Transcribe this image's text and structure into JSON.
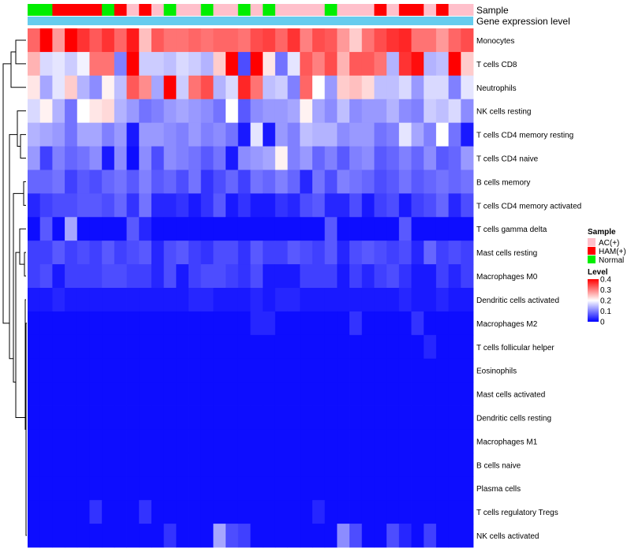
{
  "chart_data": {
    "type": "heatmap",
    "title": "",
    "annotation_tracks": [
      "Sample",
      "Gene expression level"
    ],
    "sample_column_groups": [
      "Normal",
      "Normal",
      "HAM(+)",
      "HAM(+)",
      "HAM(+)",
      "HAM(+)",
      "Normal",
      "HAM(+)",
      "AC(+)",
      "HAM(+)",
      "AC(+)",
      "Normal",
      "AC(+)",
      "AC(+)",
      "Normal",
      "AC(+)",
      "AC(+)",
      "Normal",
      "AC(+)",
      "Normal",
      "AC(+)",
      "AC(+)",
      "AC(+)",
      "AC(+)",
      "Normal",
      "AC(+)",
      "AC(+)",
      "AC(+)",
      "HAM(+)",
      "AC(+)",
      "HAM(+)",
      "HAM(+)",
      "AC(+)",
      "HAM(+)",
      "AC(+)",
      "AC(+)"
    ],
    "rows": [
      "Monocytes",
      "T cells CD8",
      "Neutrophils",
      "NK cells resting",
      "T cells CD4 memory resting",
      "T cells CD4 naive",
      "B cells memory",
      "T cells CD4 memory activated",
      "T cells gamma delta",
      "Mast cells resting",
      "Macrophages M0",
      "Dendritic cells activated",
      "Macrophages M2",
      "T cells follicular helper",
      "Eosinophils",
      "Mast cells activated",
      "Dendritic cells resting",
      "Macrophages M1",
      "B cells naive",
      "Plasma cells",
      "T cells regulatory  Tregs",
      "NK cells activated"
    ],
    "values": [
      [
        0.32,
        0.4,
        0.28,
        0.4,
        0.36,
        0.33,
        0.36,
        0.32,
        0.38,
        0.25,
        0.33,
        0.31,
        0.31,
        0.32,
        0.31,
        0.32,
        0.32,
        0.31,
        0.34,
        0.35,
        0.32,
        0.36,
        0.3,
        0.34,
        0.33,
        0.28,
        0.24,
        0.31,
        0.34,
        0.36,
        0.37,
        0.31,
        0.31,
        0.28,
        0.32,
        0.34
      ],
      [
        0.26,
        0.17,
        0.18,
        0.16,
        0.19,
        0.31,
        0.31,
        0.1,
        0.42,
        0.16,
        0.16,
        0.15,
        0.17,
        0.16,
        0.14,
        0.24,
        0.41,
        0.06,
        0.4,
        0.22,
        0.09,
        0.18,
        0.33,
        0.3,
        0.34,
        0.26,
        0.33,
        0.33,
        0.31,
        0.14,
        0.36,
        0.39,
        0.14,
        0.15,
        0.41,
        0.24
      ],
      [
        0.22,
        0.13,
        0.18,
        0.24,
        0.14,
        0.11,
        0.21,
        0.15,
        0.33,
        0.29,
        0.13,
        0.4,
        0.16,
        0.31,
        0.34,
        0.14,
        0.17,
        0.37,
        0.31,
        0.15,
        0.16,
        0.1,
        0.32,
        0.2,
        0.12,
        0.24,
        0.25,
        0.23,
        0.15,
        0.15,
        0.17,
        0.12,
        0.17,
        0.17,
        0.1,
        0.18
      ],
      [
        0.17,
        0.21,
        0.14,
        0.09,
        0.2,
        0.22,
        0.23,
        0.14,
        0.12,
        0.09,
        0.1,
        0.12,
        0.13,
        0.12,
        0.11,
        0.09,
        0.2,
        0.07,
        0.11,
        0.12,
        0.12,
        0.13,
        0.21,
        0.13,
        0.11,
        0.15,
        0.11,
        0.12,
        0.12,
        0.14,
        0.11,
        0.1,
        0.16,
        0.15,
        0.17,
        0.11
      ],
      [
        0.14,
        0.13,
        0.12,
        0.09,
        0.13,
        0.13,
        0.1,
        0.12,
        0.02,
        0.12,
        0.12,
        0.11,
        0.1,
        0.12,
        0.1,
        0.11,
        0.09,
        0.02,
        0.18,
        0.02,
        0.12,
        0.1,
        0.15,
        0.14,
        0.14,
        0.11,
        0.12,
        0.12,
        0.09,
        0.1,
        0.18,
        0.13,
        0.1,
        0.2,
        0.09,
        0.02
      ],
      [
        0.12,
        0.05,
        0.1,
        0.08,
        0.09,
        0.11,
        0.02,
        0.11,
        0.01,
        0.11,
        0.06,
        0.11,
        0.1,
        0.09,
        0.07,
        0.09,
        0.02,
        0.11,
        0.12,
        0.13,
        0.21,
        0.1,
        0.12,
        0.08,
        0.1,
        0.07,
        0.1,
        0.11,
        0.07,
        0.08,
        0.1,
        0.08,
        0.11,
        0.07,
        0.08,
        0.12
      ],
      [
        0.08,
        0.08,
        0.09,
        0.05,
        0.07,
        0.06,
        0.08,
        0.09,
        0.07,
        0.1,
        0.07,
        0.08,
        0.06,
        0.09,
        0.04,
        0.06,
        0.08,
        0.05,
        0.09,
        0.08,
        0.1,
        0.08,
        0.03,
        0.09,
        0.06,
        0.1,
        0.09,
        0.08,
        0.06,
        0.07,
        0.09,
        0.07,
        0.08,
        0.09,
        0.08,
        0.09
      ],
      [
        0.03,
        0.05,
        0.06,
        0.06,
        0.07,
        0.07,
        0.06,
        0.08,
        0.04,
        0.09,
        0.03,
        0.03,
        0.04,
        0.02,
        0.04,
        0.07,
        0.02,
        0.04,
        0.02,
        0.02,
        0.04,
        0.03,
        0.06,
        0.07,
        0.03,
        0.03,
        0.06,
        0.02,
        0.05,
        0.06,
        0.02,
        0.05,
        0.06,
        0.08,
        0.03,
        0.06
      ],
      [
        0.01,
        0.07,
        0.01,
        0.13,
        0.01,
        0.01,
        0.01,
        0.01,
        0.07,
        0.03,
        0.01,
        0.01,
        0.01,
        0.01,
        0.01,
        0.01,
        0.01,
        0.01,
        0.01,
        0.01,
        0.01,
        0.01,
        0.01,
        0.01,
        0.07,
        0.01,
        0.01,
        0.01,
        0.01,
        0.01,
        0.07,
        0.01,
        0.01,
        0.01,
        0.01,
        0.01
      ],
      [
        0.05,
        0.05,
        0.07,
        0.05,
        0.06,
        0.05,
        0.07,
        0.05,
        0.06,
        0.07,
        0.03,
        0.06,
        0.07,
        0.05,
        0.04,
        0.06,
        0.06,
        0.04,
        0.07,
        0.05,
        0.05,
        0.07,
        0.06,
        0.05,
        0.07,
        0.03,
        0.06,
        0.07,
        0.06,
        0.05,
        0.06,
        0.03,
        0.08,
        0.05,
        0.06,
        0.05
      ],
      [
        0.05,
        0.06,
        0.02,
        0.05,
        0.05,
        0.05,
        0.06,
        0.06,
        0.05,
        0.05,
        0.03,
        0.06,
        0.02,
        0.05,
        0.06,
        0.06,
        0.05,
        0.04,
        0.06,
        0.02,
        0.02,
        0.02,
        0.05,
        0.05,
        0.05,
        0.02,
        0.05,
        0.03,
        0.05,
        0.06,
        0.04,
        0.02,
        0.02,
        0.05,
        0.03,
        0.05
      ],
      [
        0.02,
        0.02,
        0.03,
        0.02,
        0.02,
        0.02,
        0.02,
        0.02,
        0.02,
        0.02,
        0.02,
        0.02,
        0.02,
        0.03,
        0.03,
        0.02,
        0.02,
        0.02,
        0.03,
        0.02,
        0.03,
        0.03,
        0.02,
        0.02,
        0.02,
        0.02,
        0.02,
        0.02,
        0.02,
        0.02,
        0.03,
        0.02,
        0.02,
        0.03,
        0.02,
        0.02
      ],
      [
        0.01,
        0.01,
        0.01,
        0.01,
        0.01,
        0.01,
        0.01,
        0.01,
        0.01,
        0.01,
        0.01,
        0.01,
        0.01,
        0.01,
        0.01,
        0.01,
        0.01,
        0.01,
        0.03,
        0.03,
        0.01,
        0.01,
        0.01,
        0.01,
        0.01,
        0.01,
        0.04,
        0.01,
        0.01,
        0.01,
        0.01,
        0.04,
        0.01,
        0.01,
        0.01,
        0.01
      ],
      [
        0.01,
        0.01,
        0.01,
        0.01,
        0.01,
        0.01,
        0.01,
        0.01,
        0.01,
        0.01,
        0.01,
        0.01,
        0.01,
        0.01,
        0.01,
        0.01,
        0.01,
        0.01,
        0.01,
        0.01,
        0.01,
        0.01,
        0.01,
        0.01,
        0.01,
        0.01,
        0.01,
        0.01,
        0.01,
        0.01,
        0.01,
        0.01,
        0.03,
        0.01,
        0.01,
        0.01
      ],
      [
        0.01,
        0.01,
        0.01,
        0.01,
        0.01,
        0.01,
        0.01,
        0.01,
        0.01,
        0.01,
        0.01,
        0.01,
        0.01,
        0.01,
        0.01,
        0.01,
        0.01,
        0.01,
        0.01,
        0.01,
        0.01,
        0.01,
        0.01,
        0.01,
        0.01,
        0.01,
        0.01,
        0.01,
        0.01,
        0.01,
        0.01,
        0.01,
        0.01,
        0.01,
        0.01,
        0.01
      ],
      [
        0.01,
        0.01,
        0.01,
        0.01,
        0.01,
        0.01,
        0.01,
        0.01,
        0.01,
        0.01,
        0.01,
        0.01,
        0.01,
        0.01,
        0.01,
        0.01,
        0.01,
        0.01,
        0.01,
        0.01,
        0.01,
        0.01,
        0.01,
        0.01,
        0.01,
        0.01,
        0.01,
        0.01,
        0.01,
        0.01,
        0.01,
        0.01,
        0.01,
        0.01,
        0.01,
        0.01
      ],
      [
        0.01,
        0.01,
        0.01,
        0.01,
        0.01,
        0.01,
        0.01,
        0.01,
        0.01,
        0.01,
        0.01,
        0.01,
        0.01,
        0.01,
        0.01,
        0.01,
        0.01,
        0.01,
        0.01,
        0.01,
        0.01,
        0.01,
        0.01,
        0.01,
        0.01,
        0.01,
        0.01,
        0.01,
        0.01,
        0.01,
        0.01,
        0.01,
        0.01,
        0.01,
        0.01,
        0.01
      ],
      [
        0.01,
        0.01,
        0.01,
        0.01,
        0.01,
        0.01,
        0.01,
        0.01,
        0.01,
        0.01,
        0.01,
        0.01,
        0.01,
        0.01,
        0.01,
        0.01,
        0.01,
        0.01,
        0.01,
        0.01,
        0.01,
        0.01,
        0.01,
        0.01,
        0.01,
        0.01,
        0.01,
        0.01,
        0.01,
        0.01,
        0.01,
        0.01,
        0.01,
        0.01,
        0.01,
        0.01
      ],
      [
        0.01,
        0.01,
        0.01,
        0.01,
        0.01,
        0.01,
        0.01,
        0.01,
        0.01,
        0.01,
        0.01,
        0.01,
        0.01,
        0.01,
        0.01,
        0.01,
        0.01,
        0.01,
        0.01,
        0.01,
        0.01,
        0.01,
        0.01,
        0.01,
        0.01,
        0.01,
        0.01,
        0.01,
        0.01,
        0.01,
        0.01,
        0.01,
        0.01,
        0.01,
        0.01,
        0.01
      ],
      [
        0.01,
        0.01,
        0.01,
        0.01,
        0.01,
        0.01,
        0.01,
        0.01,
        0.01,
        0.01,
        0.01,
        0.01,
        0.01,
        0.01,
        0.01,
        0.01,
        0.01,
        0.01,
        0.01,
        0.01,
        0.01,
        0.01,
        0.01,
        0.01,
        0.01,
        0.01,
        0.01,
        0.01,
        0.01,
        0.01,
        0.01,
        0.01,
        0.01,
        0.01,
        0.01,
        0.01
      ],
      [
        0.01,
        0.01,
        0.01,
        0.01,
        0.01,
        0.04,
        0.01,
        0.01,
        0.01,
        0.04,
        0.01,
        0.01,
        0.01,
        0.01,
        0.01,
        0.01,
        0.01,
        0.01,
        0.01,
        0.01,
        0.01,
        0.01,
        0.01,
        0.03,
        0.01,
        0.01,
        0.01,
        0.01,
        0.01,
        0.01,
        0.01,
        0.01,
        0.01,
        0.01,
        0.01,
        0.01
      ],
      [
        0.01,
        0.01,
        0.01,
        0.01,
        0.01,
        0.01,
        0.01,
        0.01,
        0.01,
        0.01,
        0.01,
        0.04,
        0.01,
        0.01,
        0.01,
        0.13,
        0.06,
        0.05,
        0.01,
        0.01,
        0.01,
        0.01,
        0.01,
        0.01,
        0.01,
        0.11,
        0.06,
        0.01,
        0.01,
        0.06,
        0.03,
        0.01,
        0.05,
        0.01,
        0.01,
        0.01
      ]
    ],
    "color_scale": {
      "min": 0,
      "max": 0.4,
      "colors": [
        "#0000ff",
        "#ffffff",
        "#ff0000"
      ]
    },
    "legend": {
      "sample_title": "Sample",
      "sample_entries": [
        {
          "label": "AC(+)",
          "color": "#ffc0cb"
        },
        {
          "label": "HAM(+)",
          "color": "#ff0000"
        },
        {
          "label": "Normal",
          "color": "#00ee00"
        }
      ],
      "level_title": "Level",
      "level_ticks": [
        "0.4",
        "0.3",
        "0.2",
        "0.1",
        "0"
      ],
      "level_tick_values": [
        0.4,
        0.3,
        0.2,
        0.1,
        0
      ]
    },
    "expression_level_color": "#66ccee",
    "dendrogram_side": "left"
  }
}
